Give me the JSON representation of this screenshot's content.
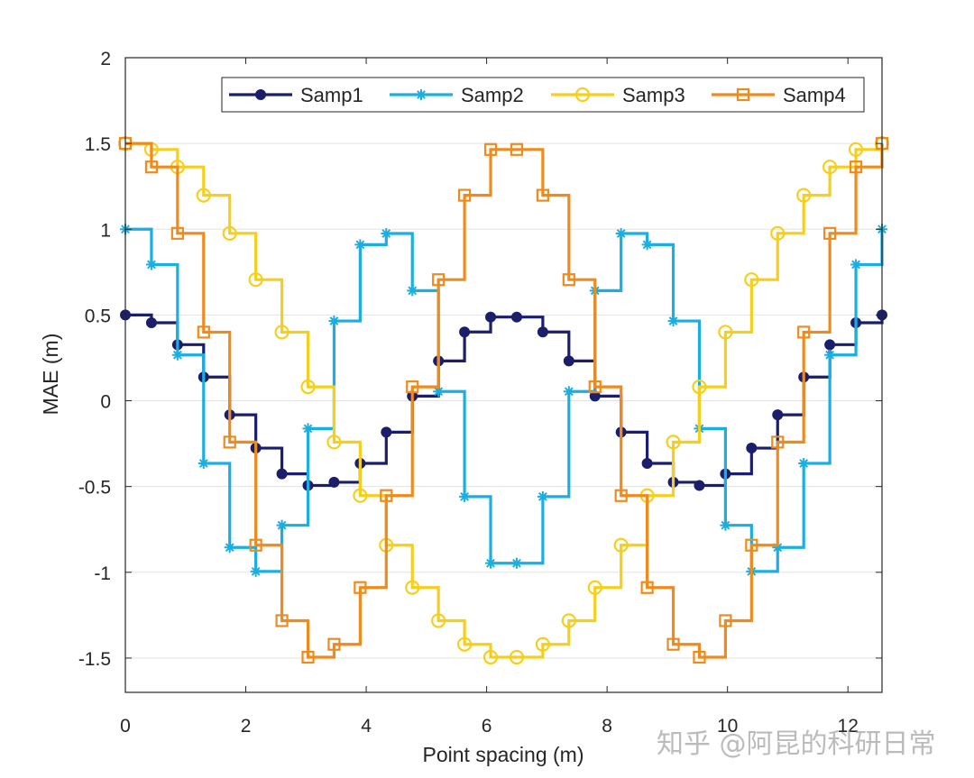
{
  "watermark": "知乎 @阿昆的科研日常",
  "chart_data": {
    "type": "line",
    "step": true,
    "xlabel": "Point spacing (m)",
    "ylabel": "MAE (m)",
    "xlim": [
      0,
      12.566
    ],
    "ylim": [
      -1.7,
      2
    ],
    "xticks": [
      0,
      2,
      4,
      6,
      8,
      10,
      12
    ],
    "yticks": [
      -1.5,
      -1,
      -0.5,
      0,
      0.5,
      1,
      1.5,
      2
    ],
    "grid": "horizontal",
    "legend_position": "top-right",
    "x": [
      0,
      0.4333,
      0.8666,
      1.2999,
      1.7332,
      2.1665,
      2.5998,
      3.0331,
      3.4664,
      3.8997,
      4.333,
      4.7663,
      5.1996,
      5.6329,
      6.0662,
      6.4995,
      6.9328,
      7.3661,
      7.7994,
      8.2327,
      8.666,
      9.0993,
      9.5326,
      9.9659,
      10.3992,
      10.8325,
      11.2658,
      11.6991,
      12.1324,
      12.566
    ],
    "series": [
      {
        "name": "Samp1",
        "color": "#1b1f6b",
        "marker": "filled-circle",
        "values": [
          0.5,
          0.455,
          0.327,
          0.138,
          -0.082,
          -0.276,
          -0.426,
          -0.494,
          -0.475,
          -0.365,
          -0.183,
          0.027,
          0.232,
          0.401,
          0.488,
          0.488,
          0.401,
          0.232,
          0.027,
          -0.183,
          -0.365,
          -0.475,
          -0.494,
          -0.426,
          -0.276,
          -0.082,
          0.138,
          0.327,
          0.455,
          0.5
        ]
      },
      {
        "name": "Samp2",
        "color": "#1aafe0",
        "marker": "asterisk",
        "values": [
          1.0,
          0.794,
          0.267,
          -0.365,
          -0.855,
          -0.995,
          -0.726,
          -0.162,
          0.465,
          0.91,
          0.975,
          0.642,
          0.054,
          -0.559,
          -0.947,
          -0.947,
          -0.559,
          0.054,
          0.642,
          0.975,
          0.91,
          0.465,
          -0.162,
          -0.726,
          -0.995,
          -0.855,
          -0.365,
          0.267,
          0.794,
          1.0
        ]
      },
      {
        "name": "Samp3",
        "color": "#f6cf1c",
        "marker": "open-circle",
        "values": [
          1.5,
          1.465,
          1.363,
          1.198,
          0.976,
          0.706,
          0.4,
          0.081,
          -0.241,
          -0.553,
          -0.842,
          -1.089,
          -1.282,
          -1.42,
          -1.495,
          -1.495,
          -1.42,
          -1.282,
          -1.089,
          -0.842,
          -0.553,
          -0.241,
          0.081,
          0.4,
          0.706,
          0.976,
          1.198,
          1.363,
          1.465,
          1.5
        ]
      },
      {
        "name": "Samp4",
        "color": "#ef8b1c",
        "marker": "open-square",
        "values": [
          1.5,
          1.363,
          0.976,
          0.4,
          -0.241,
          -0.842,
          -1.282,
          -1.495,
          -1.42,
          -1.089,
          -0.553,
          0.081,
          0.706,
          1.198,
          1.465,
          1.465,
          1.198,
          0.706,
          0.081,
          -0.553,
          -1.089,
          -1.42,
          -1.495,
          -1.282,
          -0.842,
          -0.241,
          0.4,
          0.976,
          1.363,
          1.5
        ]
      }
    ]
  }
}
